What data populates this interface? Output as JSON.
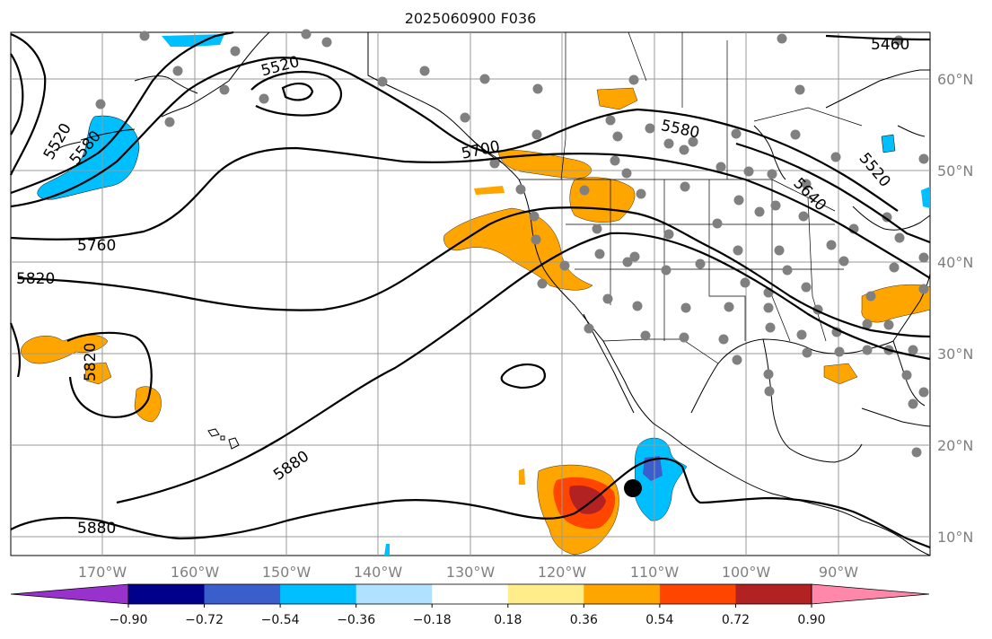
{
  "title": "2025060900 F036",
  "lat_labels": [
    "60°N",
    "50°N",
    "40°N",
    "30°N",
    "20°N",
    "10°N"
  ],
  "lon_labels": [
    "170°W",
    "160°W",
    "150°W",
    "140°W",
    "130°W",
    "120°W",
    "110°W",
    "100°W",
    "90°W"
  ],
  "contour_labels": [
    "5460",
    "5520",
    "5520",
    "5580",
    "5580",
    "5520",
    "5640",
    "5700",
    "5760",
    "5820",
    "5820",
    "5880",
    "5880"
  ],
  "colorbar": {
    "ticks": [
      "−0.90",
      "−0.72",
      "−0.54",
      "−0.36",
      "−0.18",
      "0.18",
      "0.36",
      "0.54",
      "0.72",
      "0.90"
    ],
    "colors": [
      "#9932CC",
      "#00008B",
      "#3A5FCD",
      "#00BFFF",
      "#B0E2FF",
      "#FFFFFF",
      "#FFEC8B",
      "#FFA500",
      "#FF4500",
      "#B22222",
      "#FF88AA"
    ]
  },
  "colors": {
    "grid": "#9a9a9a",
    "stations": "#808080",
    "contours": "#000000"
  },
  "marker": "black-dot"
}
